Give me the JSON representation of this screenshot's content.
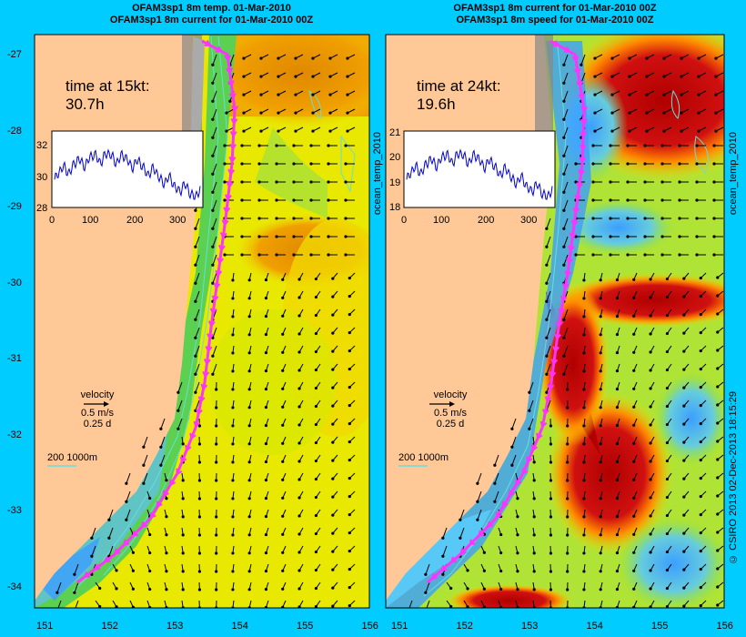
{
  "titles": {
    "left": [
      "OFAM3sp1 8m temp. 01-Mar-2010",
      "OFAM3sp1 8m current for 01-Mar-2010 00Z"
    ],
    "right": [
      "OFAM3sp1 8m current for 01-Mar-2010 00Z",
      "OFAM3sp1 8m speed for 01-Mar-2010 00Z"
    ]
  },
  "axes": {
    "lat_ticks": [
      "-27",
      "-28",
      "-29",
      "-30",
      "-31",
      "-32",
      "-33",
      "-34"
    ],
    "lon_ticks": [
      "151",
      "152",
      "153",
      "154",
      "155",
      "156"
    ]
  },
  "panels": {
    "left": {
      "time_label": "time at 15kt:",
      "time_value": "30.7h",
      "inset_y_ticks": [
        "32",
        "30",
        "28"
      ],
      "inset_x_ticks": [
        "0",
        "100",
        "200",
        "300"
      ],
      "side_label": "ocean_temp_2010"
    },
    "right": {
      "time_label": "time at 24kt:",
      "time_value": "19.6h",
      "inset_y_ticks": [
        "21",
        "20",
        "19",
        "18"
      ],
      "inset_x_ticks": [
        "0",
        "100",
        "200",
        "300"
      ],
      "side_label": "ocean_temp_2010"
    }
  },
  "legend": {
    "velocity": "velocity",
    "speed": "0.5 m/s",
    "duration": "0.25 d",
    "isobath": "200  1000m"
  },
  "credit": "© CSIRO 2013   02-Dec-2013 18:15:29",
  "colors": {
    "background": "#00ccff",
    "land": "#ffc896",
    "path": "#ff33ff",
    "isobath": "#66dddd",
    "warm": "#e89a00",
    "hot": "#b00000",
    "cool": "#3b9fff"
  }
}
